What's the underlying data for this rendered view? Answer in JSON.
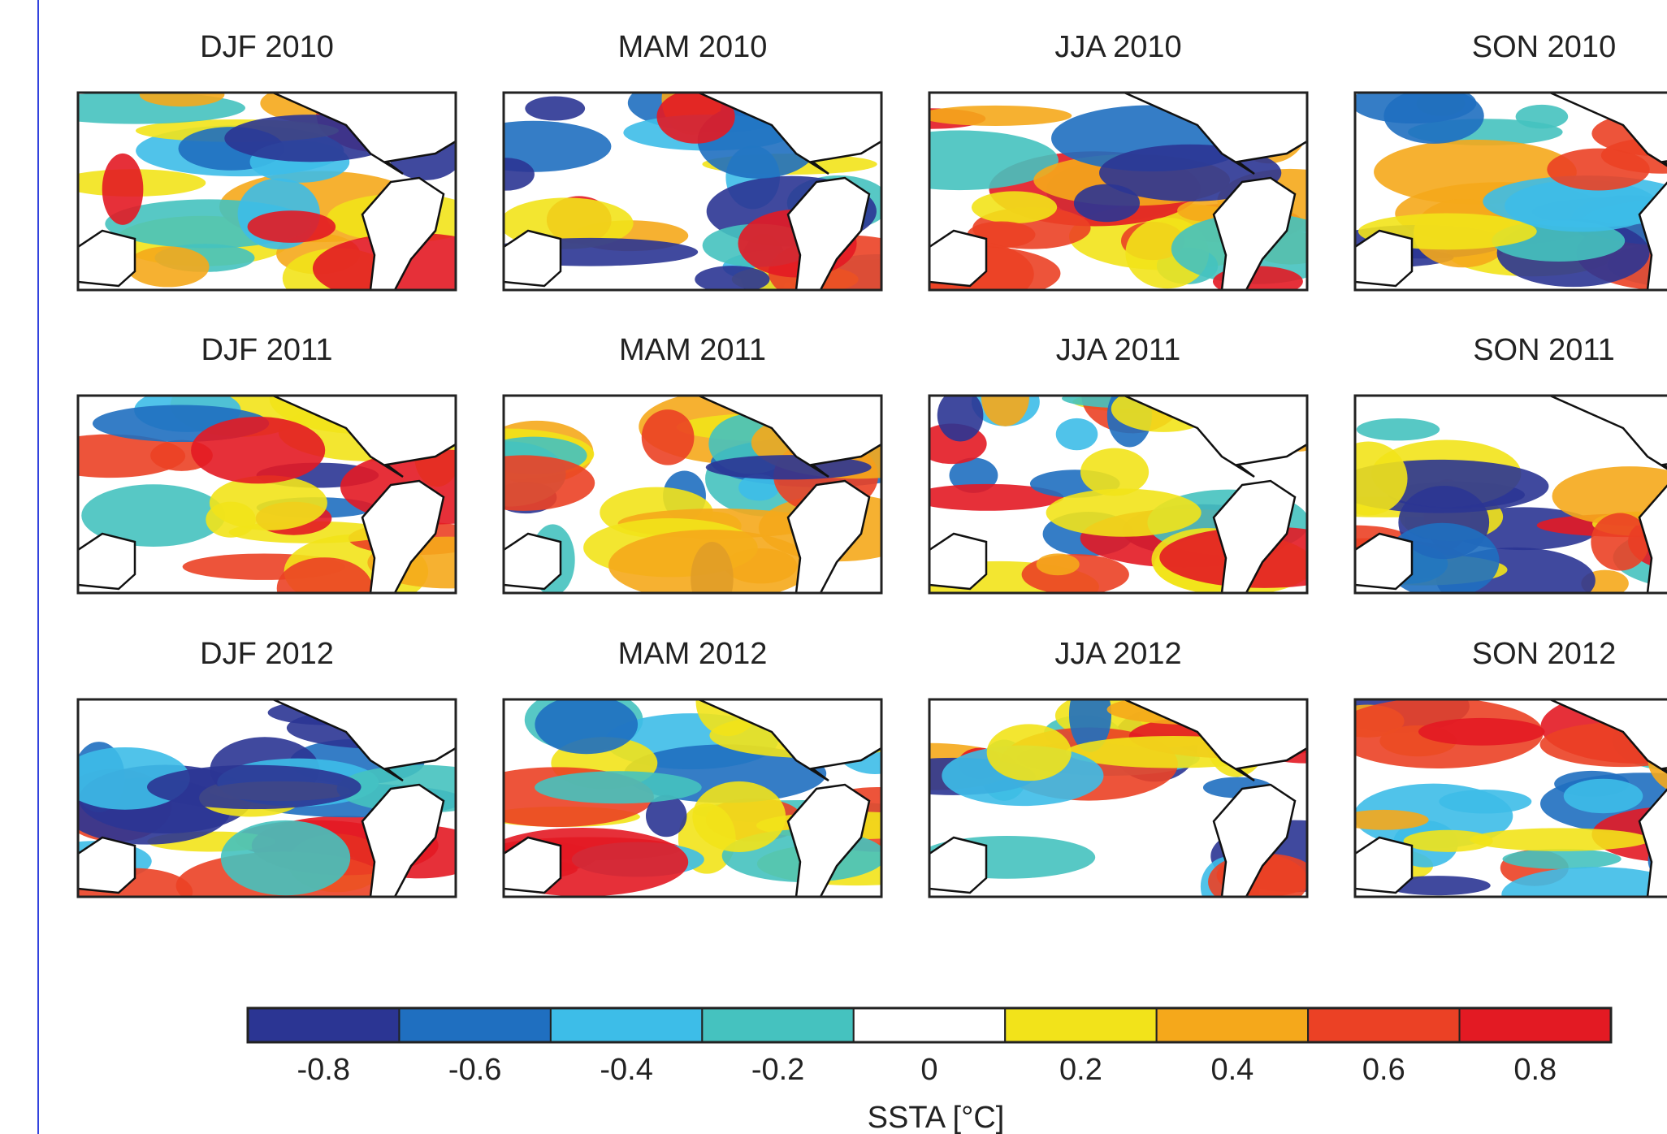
{
  "panels": [
    "DJF 2010",
    "MAM 2010",
    "JJA 2010",
    "SON 2010",
    "DJF 2011",
    "MAM 2011",
    "JJA 2011",
    "SON 2011",
    "DJF 2012",
    "MAM 2012",
    "JJA 2012",
    "SON 2012"
  ],
  "colorbar": {
    "label": "SSTA [°C]",
    "ticks": [
      -0.8,
      -0.6,
      -0.4,
      -0.2,
      0,
      0.2,
      0.4,
      0.6,
      0.8
    ],
    "colors": [
      "#2b3593",
      "#1f6fc0",
      "#3dbde8",
      "#45c2bf",
      "#ffffff",
      "#f2e31a",
      "#f5a81b",
      "#eb4125",
      "#e31a23"
    ]
  }
}
